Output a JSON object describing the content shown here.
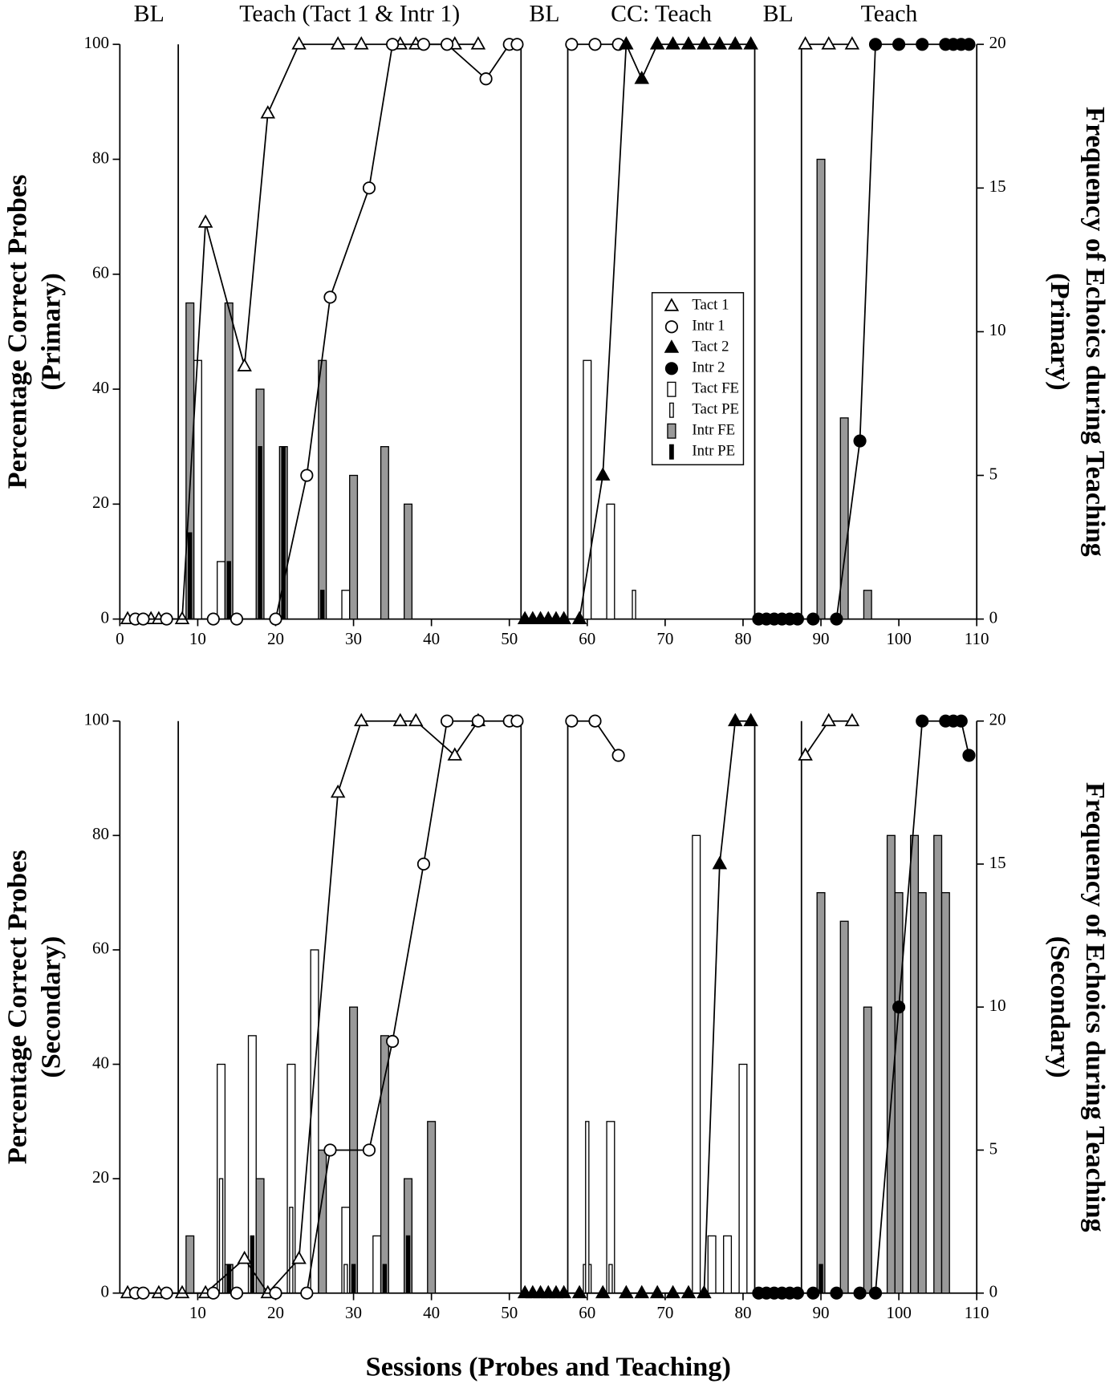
{
  "chart_data": [
    {
      "type": "line",
      "phases": [
        "BL",
        "Teach (Tact 1 & Intr 1)",
        "BL",
        "CC: Teach",
        "BL",
        "Teach"
      ],
      "ylabel": [
        "Percentage Correct Probes",
        "(Primary)"
      ],
      "y2label": [
        "Frequency of Echoics during Teaching",
        "(Primary)"
      ],
      "xlim": [
        0,
        110
      ],
      "xticks": [
        0,
        10,
        20,
        30,
        40,
        50,
        60,
        70,
        80,
        90,
        100,
        110
      ],
      "ylim": [
        0,
        100
      ],
      "yticks": [
        0,
        20,
        40,
        60,
        80,
        100
      ],
      "y2lim": [
        0,
        20
      ],
      "y2ticks": [
        0,
        5,
        10,
        15,
        20
      ],
      "phase_lines": [
        7.5,
        51.5,
        57.5,
        81.5,
        87.5
      ],
      "legend": "center",
      "series": [
        {
          "name": "Tact FE",
          "type": "bar",
          "axis": "y2",
          "color": "#ffffff",
          "bar_width": "wide",
          "x": [
            10,
            13,
            29,
            60,
            63
          ],
          "values": [
            9,
            2,
            1,
            9,
            4
          ]
        },
        {
          "name": "Tact PE",
          "type": "bar",
          "axis": "y2",
          "color": "#ffffff",
          "bar_width": "narrow",
          "x": [
            66
          ],
          "values": [
            1
          ]
        },
        {
          "name": "Intr FE",
          "type": "bar",
          "axis": "y2",
          "color": "#999999",
          "bar_width": "wide",
          "x": [
            9,
            14,
            18,
            21,
            26,
            30,
            34,
            37,
            90,
            93,
            96
          ],
          "values": [
            11,
            11,
            8,
            6,
            9,
            5,
            6,
            4,
            16,
            7,
            1
          ]
        },
        {
          "name": "Intr PE",
          "type": "bar",
          "axis": "y2",
          "color": "#000000",
          "bar_width": "narrow",
          "x": [
            9,
            14,
            18,
            21,
            26
          ],
          "values": [
            3,
            2,
            6,
            6,
            1
          ]
        },
        {
          "name": "Tact 1",
          "type": "line",
          "marker": "triangle",
          "color": "#ffffff",
          "x": [
            1,
            4,
            5,
            8,
            11,
            16,
            19,
            23,
            28,
            31,
            36,
            38,
            43,
            46,
            60,
            88,
            91,
            94
          ],
          "values": [
            0,
            0,
            0,
            0,
            69,
            44,
            88,
            100,
            100,
            100,
            100,
            100,
            100,
            100,
            null,
            100,
            100,
            100
          ]
        },
        {
          "name": "Intr 1",
          "type": "line",
          "marker": "circle",
          "color": "#ffffff",
          "x": [
            2,
            3,
            6,
            12,
            15,
            20,
            24,
            27,
            32,
            35,
            39,
            42,
            47,
            50,
            51,
            55,
            58,
            61,
            64
          ],
          "values": [
            0,
            0,
            0,
            0,
            0,
            0,
            25,
            56,
            75,
            100,
            100,
            100,
            94,
            100,
            100,
            null,
            100,
            100,
            100
          ]
        },
        {
          "name": "Tact 2",
          "type": "line",
          "marker": "triangle",
          "color": "#000000",
          "x": [
            52,
            53,
            54,
            55,
            56,
            57,
            59,
            62,
            65,
            67,
            69,
            71,
            73,
            75,
            77,
            79,
            81
          ],
          "values": [
            0,
            0,
            0,
            0,
            0,
            0,
            0,
            25,
            100,
            94,
            100,
            100,
            100,
            100,
            100,
            100,
            100
          ]
        },
        {
          "name": "Intr 2",
          "type": "line",
          "marker": "circle",
          "color": "#000000",
          "x": [
            82,
            83,
            84,
            85,
            86,
            87,
            89,
            92,
            95,
            97,
            100,
            103,
            106,
            107,
            108,
            109
          ],
          "values": [
            0,
            0,
            0,
            0,
            0,
            0,
            0,
            0,
            31,
            100,
            100,
            100,
            100,
            100,
            100,
            100
          ]
        }
      ]
    },
    {
      "type": "line",
      "ylabel": [
        "Percentage Correct Probes",
        "(Secondary)"
      ],
      "y2label": [
        "Frequency of Echoics during Teaching",
        "(Secondary)"
      ],
      "xlabel": "Sessions (Probes and Teaching)",
      "xlim": [
        0,
        110
      ],
      "xticks": [
        10,
        20,
        30,
        40,
        50,
        60,
        70,
        80,
        90,
        100,
        110
      ],
      "ylim": [
        0,
        100
      ],
      "yticks": [
        0,
        20,
        40,
        60,
        80,
        100
      ],
      "y2lim": [
        0,
        20
      ],
      "y2ticks": [
        0,
        5,
        10,
        15,
        20
      ],
      "phase_lines": [
        7.5,
        51.5,
        57.5,
        81.5,
        87.5
      ],
      "series": [
        {
          "name": "Tact FE",
          "type": "bar",
          "axis": "y2",
          "color": "#ffffff",
          "bar_width": "wide",
          "x": [
            13,
            17,
            22,
            25,
            29,
            33,
            60,
            63,
            74,
            76,
            78,
            80
          ],
          "values": [
            8,
            9,
            8,
            12,
            3,
            2,
            1,
            6,
            16,
            2,
            2,
            8
          ]
        },
        {
          "name": "Tact PE",
          "type": "bar",
          "axis": "y2",
          "color": "#ffffff",
          "bar_width": "narrow",
          "x": [
            13,
            22,
            29,
            60,
            63
          ],
          "values": [
            4,
            3,
            1,
            6,
            1
          ]
        },
        {
          "name": "Intr FE",
          "type": "bar",
          "axis": "y2",
          "color": "#999999",
          "bar_width": "wide",
          "x": [
            9,
            14,
            18,
            26,
            30,
            34,
            37,
            40,
            90,
            93,
            96,
            99,
            100,
            102,
            103,
            105,
            106
          ],
          "values": [
            2,
            1,
            4,
            5,
            10,
            9,
            4,
            6,
            14,
            13,
            10,
            16,
            14,
            16,
            14,
            16,
            14
          ]
        },
        {
          "name": "Intr PE",
          "type": "bar",
          "axis": "y2",
          "color": "#000000",
          "bar_width": "narrow",
          "x": [
            14,
            17,
            30,
            34,
            37,
            90
          ],
          "values": [
            1,
            2,
            1,
            1,
            2,
            1
          ]
        },
        {
          "name": "Tact 1",
          "type": "line",
          "marker": "triangle",
          "color": "#ffffff",
          "x": [
            1,
            5,
            8,
            11,
            16,
            19,
            23,
            28,
            31,
            36,
            38,
            43,
            46,
            60,
            88,
            91,
            94
          ],
          "values": [
            0,
            0,
            0,
            0,
            6,
            0,
            6,
            87.5,
            100,
            100,
            100,
            94,
            100,
            null,
            94,
            100,
            100
          ]
        },
        {
          "name": "Intr 1",
          "type": "line",
          "marker": "circle",
          "color": "#ffffff",
          "x": [
            2,
            3,
            6,
            12,
            15,
            20,
            24,
            27,
            32,
            35,
            39,
            42,
            46,
            50,
            51,
            55,
            58,
            61,
            64
          ],
          "values": [
            0,
            0,
            0,
            0,
            0,
            0,
            0,
            25,
            25,
            44,
            75,
            100,
            100,
            100,
            100,
            null,
            100,
            100,
            94
          ]
        },
        {
          "name": "Tact 2",
          "type": "line",
          "marker": "triangle",
          "color": "#000000",
          "x": [
            52,
            53,
            54,
            55,
            56,
            57,
            59,
            62,
            65,
            67,
            69,
            71,
            73,
            75,
            77,
            79,
            81
          ],
          "values": [
            0,
            0,
            0,
            0,
            0,
            0,
            0,
            0,
            0,
            0,
            0,
            0,
            0,
            0,
            75,
            100,
            100
          ]
        },
        {
          "name": "Intr 2",
          "type": "line",
          "marker": "circle",
          "color": "#000000",
          "x": [
            82,
            83,
            84,
            85,
            86,
            87,
            89,
            92,
            95,
            97,
            100,
            103,
            106,
            107,
            108,
            109
          ],
          "values": [
            0,
            0,
            0,
            0,
            0,
            0,
            0,
            0,
            0,
            0,
            50,
            100,
            100,
            100,
            100,
            94
          ]
        }
      ]
    }
  ]
}
